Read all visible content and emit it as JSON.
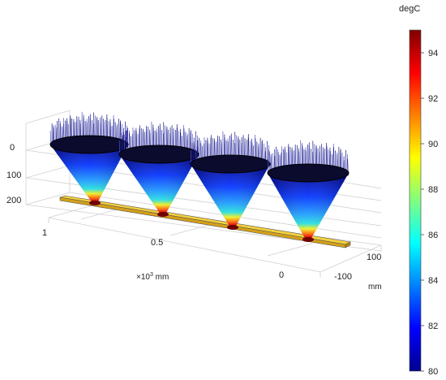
{
  "chart_data": {
    "type": "3d-surface",
    "colorbar": {
      "unit": "degC",
      "min": 80,
      "max": 95,
      "ticks": [
        "80",
        "82",
        "84",
        "86",
        "88",
        "90",
        "92",
        "94"
      ]
    },
    "axes": {
      "vertical": {
        "ticks": [
          "0",
          "100",
          "200"
        ]
      },
      "long": {
        "ticks": [
          "1",
          "0.5",
          "0"
        ],
        "unit_prefix": "×10",
        "unit_exp": "3",
        "unit_suffix": " mm"
      },
      "short": {
        "ticks": [
          "100",
          "-100"
        ],
        "unit": "mm"
      }
    },
    "objects": {
      "cones": 4,
      "cone_tip_temperature": 95,
      "cone_top_temperature": 80
    }
  }
}
